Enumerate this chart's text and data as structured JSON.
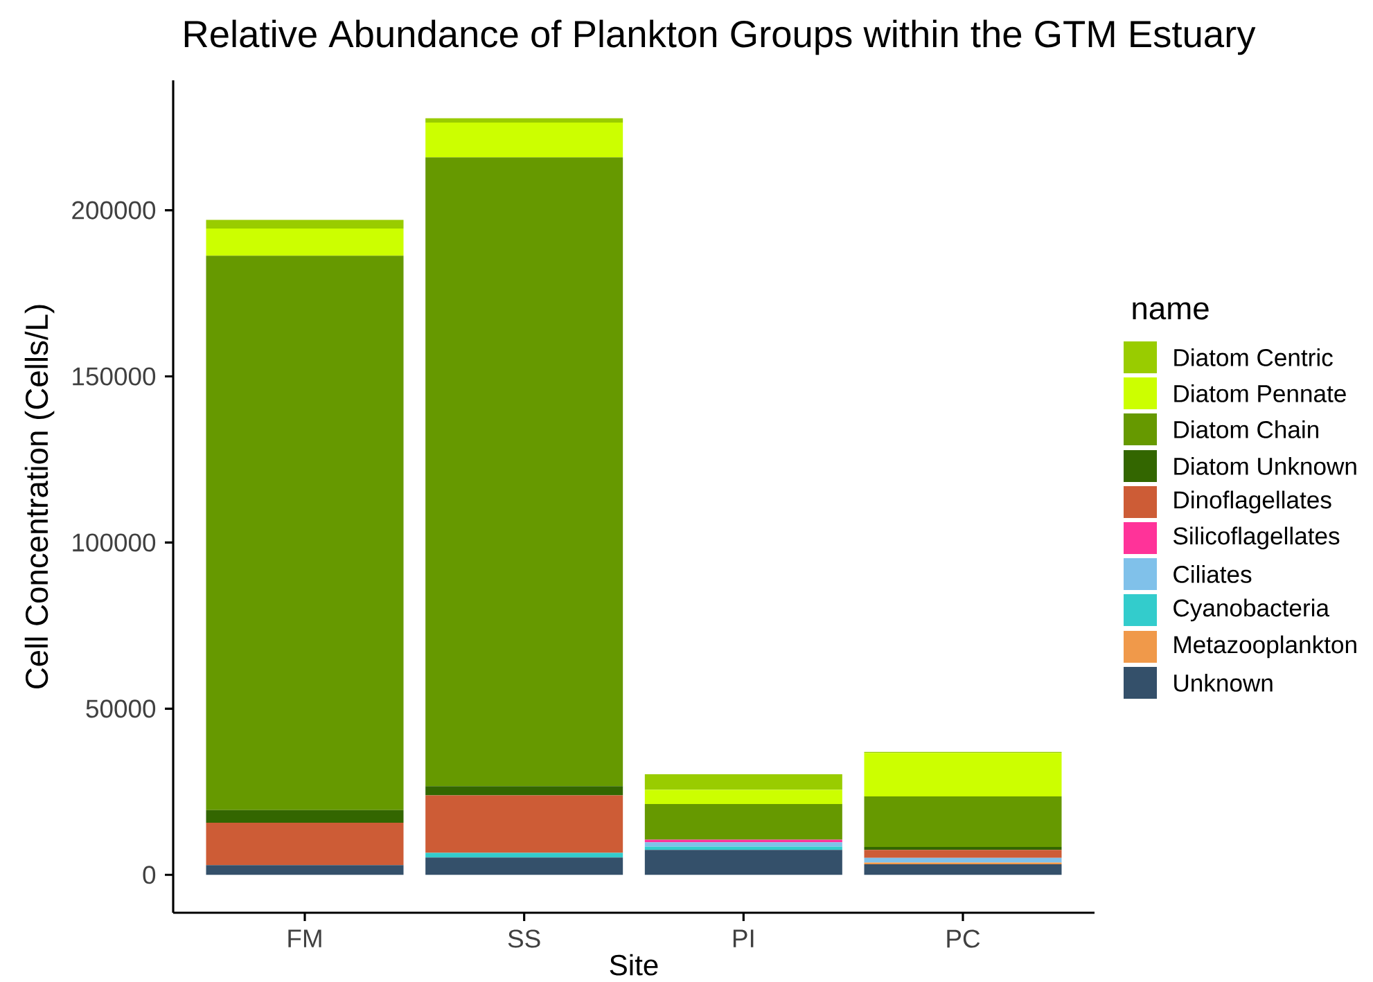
{
  "chart_data": {
    "type": "bar",
    "stacked": true,
    "title": "Relative Abundance of Plankton Groups within the GTM Estuary",
    "xlabel": "Site",
    "ylabel": "Cell Concentration (Cells/L)",
    "legend_title": "name",
    "legend": "right",
    "categories": [
      "FM",
      "SS",
      "PI",
      "PC"
    ],
    "ylim": [
      -11400,
      239100
    ],
    "yticks": [
      0,
      50000,
      100000,
      150000,
      200000
    ],
    "grid": false,
    "series": [
      {
        "name": "Unknown",
        "color": "#34506a",
        "values": [
          2900,
          5200,
          7500,
          3200
        ]
      },
      {
        "name": "Metazooplankton",
        "color": "#f0994a",
        "values": [
          null,
          null,
          null,
          500
        ]
      },
      {
        "name": "Cyanobacteria",
        "color": "#33cccc",
        "values": [
          null,
          1400,
          1000,
          null
        ]
      },
      {
        "name": "Ciliates",
        "color": "#80c1ea",
        "values": [
          null,
          null,
          1300,
          1400
        ]
      },
      {
        "name": "Silicoflagellates",
        "color": "#ff3399",
        "values": [
          null,
          null,
          800,
          null
        ]
      },
      {
        "name": "Dinoflagellates",
        "color": "#cd5c36",
        "values": [
          12800,
          17300,
          null,
          2400
        ]
      },
      {
        "name": "Diatom Unknown",
        "color": "#336600",
        "values": [
          3800,
          2800,
          null,
          900
        ]
      },
      {
        "name": "Diatom Chain",
        "color": "#669900",
        "values": [
          166800,
          189200,
          10700,
          15200
        ]
      },
      {
        "name": "Diatom Pennate",
        "color": "#ccff00",
        "values": [
          8200,
          10500,
          4300,
          13100
        ]
      },
      {
        "name": "Diatom Centric",
        "color": "#99cc00",
        "values": [
          2600,
          1300,
          4700,
          300
        ]
      }
    ]
  }
}
